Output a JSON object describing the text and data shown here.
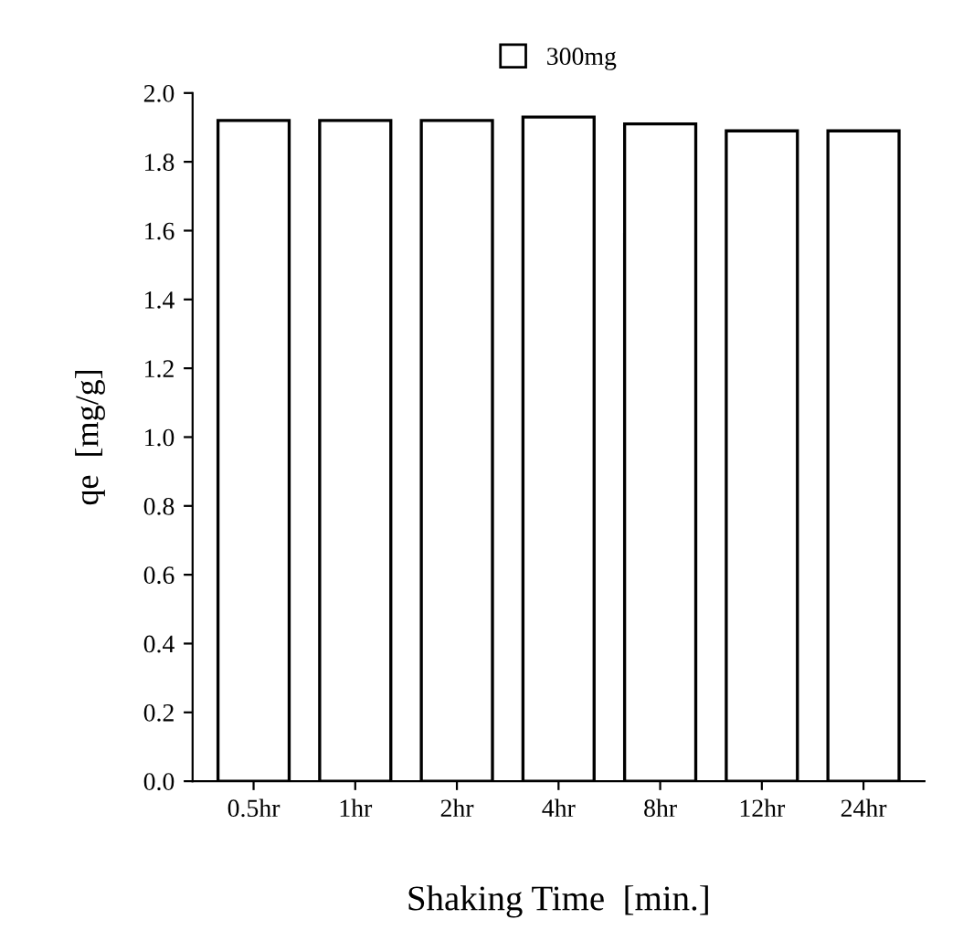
{
  "chart_data": {
    "type": "bar",
    "xlabel": "Shaking Time  [min.]",
    "ylabel": "qe  [mg/g]",
    "categories": [
      "0.5hr",
      "1hr",
      "2hr",
      "4hr",
      "8hr",
      "12hr",
      "24hr"
    ],
    "series": [
      {
        "name": "300mg",
        "color": "#ffffff",
        "values": [
          1.92,
          1.92,
          1.92,
          1.93,
          1.91,
          1.89,
          1.89
        ]
      }
    ],
    "ylim": [
      0,
      2.0
    ],
    "yticks": [
      {
        "value": 0,
        "label": "0.0"
      },
      {
        "value": 0.2,
        "label": "0.2"
      },
      {
        "value": 0.4,
        "label": "0.4"
      },
      {
        "value": 0.6,
        "label": "0.6"
      },
      {
        "value": 0.8,
        "label": "0.8"
      },
      {
        "value": 1.0,
        "label": "1.0"
      },
      {
        "value": 1.2,
        "label": "1.2"
      },
      {
        "value": 1.4,
        "label": "1.4"
      },
      {
        "value": 1.6,
        "label": "1.6"
      },
      {
        "value": 1.8,
        "label": "1.8"
      },
      {
        "value": 2.0,
        "label": "2.0"
      }
    ],
    "grid": false,
    "legend": "top"
  }
}
